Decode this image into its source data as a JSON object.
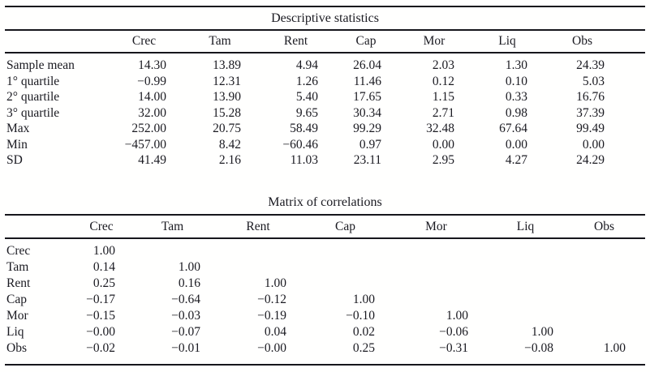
{
  "tables": [
    {
      "title": "Descriptive statistics",
      "columns": [
        "",
        "Crec",
        "Tam",
        "Rent",
        "Cap",
        "Mor",
        "Liq",
        "Obs"
      ],
      "rows": [
        {
          "label": "Sample mean",
          "values": [
            "14.30",
            "13.89",
            "4.94",
            "26.04",
            "2.03",
            "1.30",
            "24.39"
          ]
        },
        {
          "label": "1° quartile",
          "values": [
            "−0.99",
            "12.31",
            "1.26",
            "11.46",
            "0.12",
            "0.10",
            "5.03"
          ]
        },
        {
          "label": "2° quartile",
          "values": [
            "14.00",
            "13.90",
            "5.40",
            "17.65",
            "1.15",
            "0.33",
            "16.76"
          ]
        },
        {
          "label": "3° quartile",
          "values": [
            "32.00",
            "15.28",
            "9.65",
            "30.34",
            "2.71",
            "0.98",
            "37.39"
          ]
        },
        {
          "label": "Max",
          "values": [
            "252.00",
            "20.75",
            "58.49",
            "99.29",
            "32.48",
            "67.64",
            "99.49"
          ]
        },
        {
          "label": "Min",
          "values": [
            "−457.00",
            "8.42",
            "−60.46",
            "0.97",
            "0.00",
            "0.00",
            "0.00"
          ]
        },
        {
          "label": "SD",
          "values": [
            "41.49",
            "2.16",
            "11.03",
            "23.11",
            "2.95",
            "4.27",
            "24.29"
          ]
        }
      ]
    },
    {
      "title": "Matrix of correlations",
      "columns": [
        "",
        "Crec",
        "Tam",
        "Rent",
        "Cap",
        "Mor",
        "Liq",
        "Obs"
      ],
      "rows": [
        {
          "label": "Crec",
          "values": [
            "1.00",
            "",
            "",
            "",
            "",
            "",
            ""
          ]
        },
        {
          "label": "Tam",
          "values": [
            "0.14",
            "1.00",
            "",
            "",
            "",
            "",
            ""
          ]
        },
        {
          "label": "Rent",
          "values": [
            "0.25",
            "0.16",
            "1.00",
            "",
            "",
            "",
            ""
          ]
        },
        {
          "label": "Cap",
          "values": [
            "−0.17",
            "−0.64",
            "−0.12",
            "1.00",
            "",
            "",
            ""
          ]
        },
        {
          "label": "Mor",
          "values": [
            "−0.15",
            "−0.03",
            "−0.19",
            "−0.10",
            "1.00",
            "",
            ""
          ]
        },
        {
          "label": "Liq",
          "values": [
            "−0.00",
            "−0.07",
            "0.04",
            "0.02",
            "−0.06",
            "1.00",
            ""
          ]
        },
        {
          "label": "Obs",
          "values": [
            "−0.02",
            "−0.01",
            "−0.00",
            "0.25",
            "−0.31",
            "−0.08",
            "1.00"
          ]
        }
      ]
    }
  ],
  "colors": {
    "text": "#1a1a21",
    "rule": "#16161c",
    "background": "#ffffff"
  }
}
